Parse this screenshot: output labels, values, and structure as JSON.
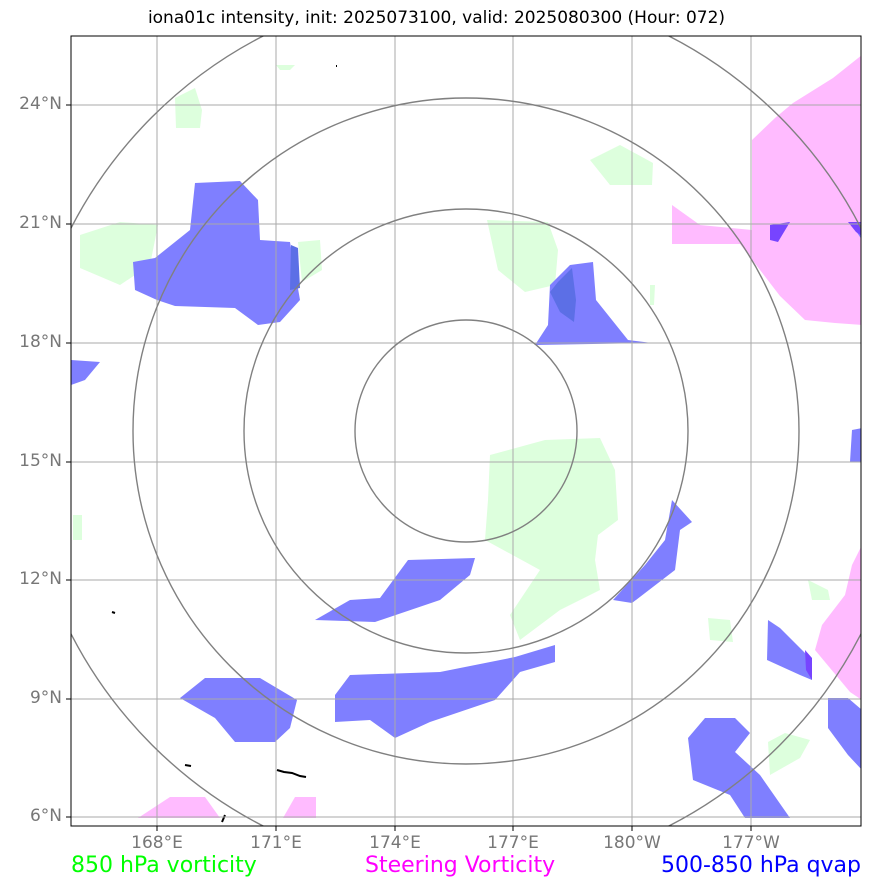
{
  "title": "iona01c intensity, init: 2025073100, valid: 2025080300 (Hour: 072)",
  "lat_labels": [
    "24°N",
    "21°N",
    "18°N",
    "15°N",
    "12°N",
    "9°N",
    "6°N"
  ],
  "lon_labels": [
    "168°E",
    "171°E",
    "174°E",
    "177°E",
    "180°W",
    "177°W"
  ],
  "legend": [
    {
      "label": "850 hPa vorticity",
      "color": "#00ff00"
    },
    {
      "label": "Steering Vorticity",
      "color": "#ff00ff"
    },
    {
      "label": "500-850 hPa qvap",
      "color": "#0000ff"
    }
  ],
  "colors": {
    "vorticity_850_fill": "#ddffdd",
    "steering_fill": "#ffbbff",
    "qvap_fill": "#7f7fff",
    "grid": "#aaaaaa",
    "rings": "#808080"
  }
}
